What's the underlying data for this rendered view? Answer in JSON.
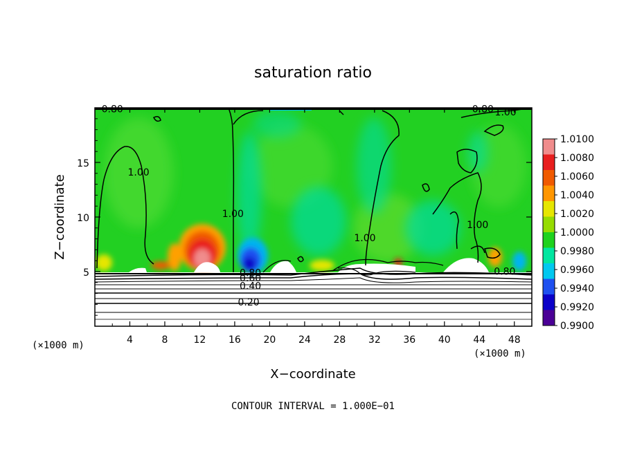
{
  "chart_data": {
    "type": "heatmap",
    "title": "saturation ratio",
    "xlabel": "X−coordinate",
    "ylabel": "Z−coordinate",
    "x_unit_left": "(×1000 m)",
    "x_unit_right": "(×1000 m)",
    "xlim": [
      0,
      50
    ],
    "ylim": [
      0,
      20
    ],
    "x_ticks": [
      4,
      8,
      12,
      16,
      20,
      24,
      28,
      32,
      36,
      40,
      44,
      48
    ],
    "y_ticks": [
      5,
      10,
      15
    ],
    "colorbar": {
      "levels": [
        "1.0100",
        "1.0080",
        "1.0060",
        "1.0040",
        "1.0020",
        "1.0000",
        "0.9980",
        "0.9960",
        "0.9940",
        "0.9920",
        "0.9900"
      ],
      "colors": [
        "#f08c8c",
        "#e81e1e",
        "#f05a00",
        "#ff9600",
        "#e6e600",
        "#96dc00",
        "#1ed21e",
        "#00e6a0",
        "#00c8f0",
        "#1e50f0",
        "#0a00c8",
        "#4b0096"
      ]
    },
    "contour_interval_text": "CONTOUR INTERVAL = 1.000E−01",
    "contour_labels": [
      {
        "text": "0.80",
        "x": 2.0,
        "z": 19.6
      },
      {
        "text": "0.80",
        "x": 44.4,
        "z": 19.6
      },
      {
        "text": "1.00",
        "x": 47.0,
        "z": 19.3
      },
      {
        "text": "1.00",
        "x": 5.0,
        "z": 13.8
      },
      {
        "text": "1.00",
        "x": 15.8,
        "z": 10.0
      },
      {
        "text": "1.00",
        "x": 30.9,
        "z": 7.8
      },
      {
        "text": "1.00",
        "x": 43.8,
        "z": 9.0
      },
      {
        "text": "0.80",
        "x": 46.9,
        "z": 4.7
      },
      {
        "text": "0.80",
        "x": 17.8,
        "z": 4.6
      },
      {
        "text": "0.60",
        "x": 17.8,
        "z": 4.1
      },
      {
        "text": "0.40",
        "x": 17.8,
        "z": 3.4
      },
      {
        "text": "0.20",
        "x": 17.6,
        "z": 1.9
      }
    ]
  }
}
